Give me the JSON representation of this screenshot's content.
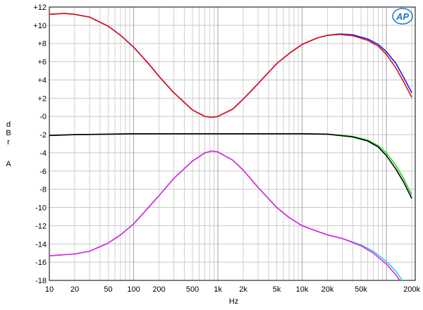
{
  "chart_data": {
    "type": "line",
    "title": "",
    "xlabel": "Hz",
    "ylabel_letters": [
      "d",
      "B",
      "r",
      "A"
    ],
    "x_scale": "log",
    "xlim": [
      10,
      220000
    ],
    "ylim": [
      -18,
      12
    ],
    "grid": true,
    "x_ticks": [
      {
        "value": 10,
        "label": "10"
      },
      {
        "value": 20,
        "label": "20"
      },
      {
        "value": 50,
        "label": "50"
      },
      {
        "value": 100,
        "label": "100"
      },
      {
        "value": 200,
        "label": "200"
      },
      {
        "value": 500,
        "label": "500"
      },
      {
        "value": 1000,
        "label": "1k"
      },
      {
        "value": 2000,
        "label": "2k"
      },
      {
        "value": 5000,
        "label": "5k"
      },
      {
        "value": 10000,
        "label": "10k"
      },
      {
        "value": 20000,
        "label": "20k"
      },
      {
        "value": 50000,
        "label": "50k"
      },
      {
        "value": 200000,
        "label": "200k"
      }
    ],
    "y_ticks": [
      {
        "value": 12,
        "label": "+12"
      },
      {
        "value": 10,
        "label": "+10"
      },
      {
        "value": 8,
        "label": "+8"
      },
      {
        "value": 6,
        "label": "+6"
      },
      {
        "value": 4,
        "label": "+4"
      },
      {
        "value": 2,
        "label": "+2"
      },
      {
        "value": 0,
        "label": "-0"
      },
      {
        "value": -2,
        "label": "-2"
      },
      {
        "value": -4,
        "label": "-4"
      },
      {
        "value": -6,
        "label": "-6"
      },
      {
        "value": -8,
        "label": "-8"
      },
      {
        "value": -10,
        "label": "-10"
      },
      {
        "value": -12,
        "label": "-12"
      },
      {
        "value": -14,
        "label": "-14"
      },
      {
        "value": -16,
        "label": "-16"
      },
      {
        "value": -18,
        "label": "-18"
      }
    ],
    "series": [
      {
        "color": "#1a1aff",
        "x": [
          10,
          15,
          20,
          30,
          50,
          70,
          100,
          150,
          200,
          300,
          500,
          700,
          850,
          1000,
          1500,
          2000,
          3000,
          5000,
          7000,
          10000,
          15000,
          20000,
          28000,
          40000,
          60000,
          80000,
          100000,
          130000,
          160000,
          200000
        ],
        "y": [
          11.2,
          11.3,
          11.2,
          10.9,
          9.9,
          8.9,
          7.6,
          5.8,
          4.4,
          2.6,
          0.7,
          0.0,
          -0.1,
          0.0,
          0.8,
          1.9,
          3.6,
          5.8,
          6.9,
          7.9,
          8.6,
          8.9,
          9.05,
          8.95,
          8.5,
          7.9,
          7.1,
          5.8,
          4.3,
          2.6
        ]
      },
      {
        "color": "#dd1111",
        "x": [
          10,
          15,
          20,
          30,
          50,
          70,
          100,
          150,
          200,
          300,
          500,
          700,
          850,
          1000,
          1500,
          2000,
          3000,
          5000,
          7000,
          10000,
          15000,
          20000,
          28000,
          40000,
          60000,
          80000,
          100000,
          130000,
          160000,
          200000
        ],
        "y": [
          11.2,
          11.3,
          11.2,
          10.9,
          9.9,
          8.9,
          7.6,
          5.8,
          4.4,
          2.6,
          0.7,
          0.0,
          -0.1,
          0.0,
          0.8,
          1.9,
          3.6,
          5.8,
          6.9,
          7.9,
          8.6,
          8.9,
          9.0,
          8.85,
          8.35,
          7.7,
          6.8,
          5.3,
          3.8,
          2.1
        ]
      },
      {
        "color": "#22dd22",
        "x": [
          10,
          20,
          50,
          100,
          1000,
          10000,
          20000,
          40000,
          60000,
          80000,
          100000,
          130000,
          160000,
          200000
        ],
        "y": [
          -2.1,
          -2.0,
          -1.95,
          -1.9,
          -1.9,
          -1.9,
          -1.95,
          -2.2,
          -2.6,
          -3.2,
          -4.0,
          -5.4,
          -6.8,
          -8.6
        ]
      },
      {
        "color": "#000000",
        "x": [
          10,
          20,
          50,
          100,
          1000,
          10000,
          20000,
          40000,
          60000,
          80000,
          100000,
          130000,
          160000,
          200000
        ],
        "y": [
          -2.1,
          -2.0,
          -1.95,
          -1.9,
          -1.9,
          -1.9,
          -1.95,
          -2.25,
          -2.7,
          -3.35,
          -4.3,
          -5.8,
          -7.2,
          -9.0
        ]
      },
      {
        "color": "#33ccee",
        "x": [
          10,
          20,
          30,
          50,
          70,
          100,
          150,
          200,
          300,
          500,
          700,
          850,
          1000,
          1500,
          2000,
          3000,
          5000,
          7000,
          10000,
          15000,
          20000,
          30000,
          50000,
          70000,
          100000,
          130000,
          160000,
          180000
        ],
        "y": [
          -15.3,
          -15.1,
          -14.8,
          -13.9,
          -13.0,
          -11.8,
          -10.0,
          -8.7,
          -6.8,
          -4.9,
          -4.0,
          -3.8,
          -3.9,
          -4.8,
          -5.9,
          -7.8,
          -10.0,
          -11.1,
          -12.0,
          -12.6,
          -13.0,
          -13.4,
          -14.1,
          -14.8,
          -15.9,
          -17.0,
          -18.2,
          -19.0
        ]
      },
      {
        "color": "#dd22dd",
        "x": [
          10,
          20,
          30,
          50,
          70,
          100,
          150,
          200,
          300,
          500,
          700,
          850,
          1000,
          1500,
          2000,
          3000,
          5000,
          7000,
          10000,
          15000,
          20000,
          30000,
          50000,
          70000,
          100000,
          130000,
          160000,
          180000
        ],
        "y": [
          -15.3,
          -15.1,
          -14.8,
          -13.9,
          -13.0,
          -11.8,
          -10.0,
          -8.7,
          -6.8,
          -4.9,
          -4.0,
          -3.8,
          -3.9,
          -4.8,
          -5.9,
          -7.8,
          -10.0,
          -11.1,
          -12.0,
          -12.6,
          -13.0,
          -13.4,
          -14.2,
          -15.0,
          -16.2,
          -17.4,
          -18.6,
          -19.4
        ]
      }
    ]
  },
  "logo": {
    "text": "AP",
    "color": "#1a73c8"
  }
}
